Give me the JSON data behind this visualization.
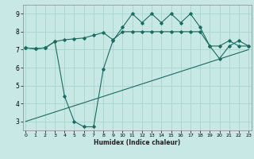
{
  "bg_color": "#c8e8e5",
  "grid_color": "#a8d4d0",
  "line_color": "#1a6b60",
  "xlabel": "Humidex (Indice chaleur)",
  "xlim": [
    -0.3,
    23.3
  ],
  "ylim": [
    2.5,
    9.5
  ],
  "yticks": [
    3,
    4,
    5,
    6,
    7,
    8,
    9
  ],
  "xticks": [
    0,
    1,
    2,
    3,
    4,
    5,
    6,
    7,
    8,
    9,
    10,
    11,
    12,
    13,
    14,
    15,
    16,
    17,
    18,
    19,
    20,
    21,
    22,
    23
  ],
  "line1_x": [
    0,
    1,
    2,
    3,
    4,
    5,
    6,
    7,
    8,
    9,
    10,
    11,
    12,
    13,
    14,
    15,
    16,
    17,
    18,
    19,
    20,
    21,
    22,
    23
  ],
  "line1_y": [
    7.1,
    7.05,
    7.1,
    7.45,
    7.55,
    7.6,
    7.65,
    7.8,
    7.95,
    7.55,
    8.0,
    8.0,
    8.0,
    8.0,
    8.0,
    8.0,
    8.0,
    8.0,
    8.0,
    7.2,
    7.2,
    7.5,
    7.2,
    7.2
  ],
  "line2_x": [
    0,
    1,
    2,
    3,
    4,
    5,
    6,
    7,
    8,
    9,
    10,
    11,
    12,
    13,
    14,
    15,
    16,
    17,
    18,
    19,
    20,
    21,
    22,
    23
  ],
  "line2_y": [
    7.1,
    7.05,
    7.1,
    7.45,
    4.4,
    3.0,
    2.7,
    2.7,
    5.9,
    7.5,
    8.25,
    9.0,
    8.5,
    9.0,
    8.5,
    9.0,
    8.5,
    9.0,
    8.25,
    7.2,
    6.5,
    7.2,
    7.5,
    7.2
  ],
  "line3_x": [
    0,
    23
  ],
  "line3_y": [
    3.0,
    7.0
  ]
}
